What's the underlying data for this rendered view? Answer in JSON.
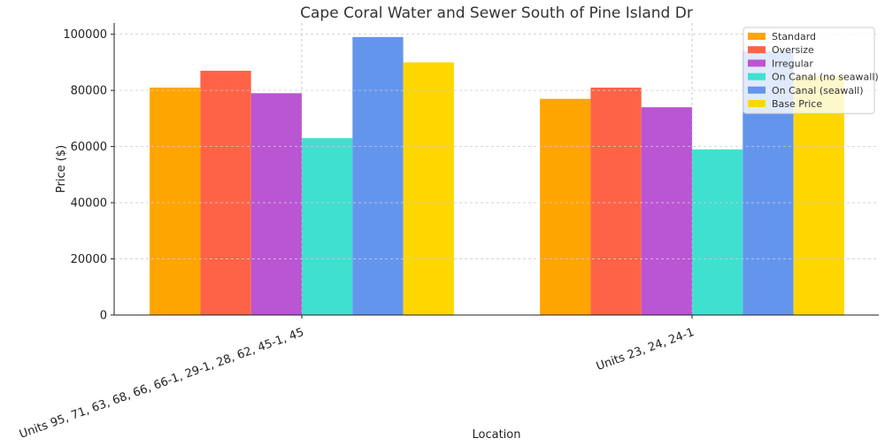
{
  "chart_data": {
    "type": "bar",
    "title": "Cape Coral Water and Sewer South of Pine Island Dr",
    "xlabel": "Location",
    "ylabel": "Price ($)",
    "categories": [
      "Units 95, 71, 63, 68, 66, 66-1, 29-1, 28, 62, 45-1, 45",
      "Units 23, 24, 24-1"
    ],
    "ylim": [
      0,
      104000
    ],
    "yticks": [
      0,
      20000,
      40000,
      60000,
      80000,
      100000
    ],
    "grid": true,
    "legend_position": "top-right",
    "series": [
      {
        "name": "Standard",
        "color": "#FFA500",
        "values": [
          81000,
          77000
        ]
      },
      {
        "name": "Oversize",
        "color": "#FF6347",
        "values": [
          87000,
          81000
        ]
      },
      {
        "name": "Irregular",
        "color": "#BA55D3",
        "values": [
          79000,
          74000
        ]
      },
      {
        "name": "On Canal (no seawall)",
        "color": "#40E0D0",
        "values": [
          63000,
          59000
        ]
      },
      {
        "name": "On Canal (seawall)",
        "color": "#6495ED",
        "values": [
          99000,
          94000
        ]
      },
      {
        "name": "Base Price",
        "color": "#FFD700",
        "values": [
          90000,
          85000
        ]
      }
    ]
  }
}
